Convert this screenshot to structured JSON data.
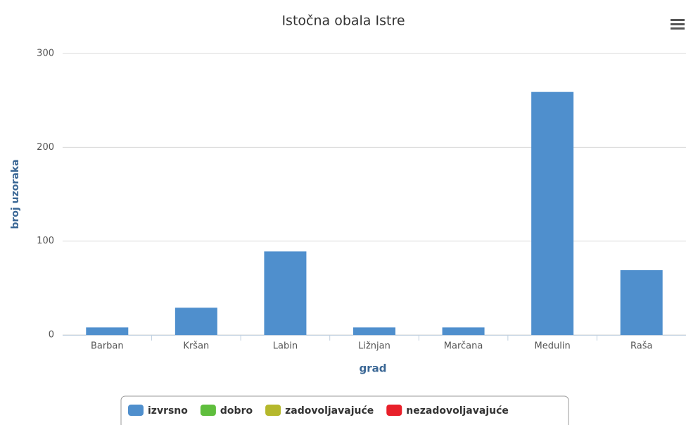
{
  "chart_data": {
    "type": "bar",
    "title": "Istočna obala Istre",
    "x_label": "grad",
    "y_label": "broj uzoraka",
    "categories": [
      "Barban",
      "Kršan",
      "Labin",
      "Ližnjan",
      "Marčana",
      "Medulin",
      "Raša"
    ],
    "series": [
      {
        "name": "izvrsno",
        "color": "#4f8fcd",
        "values": [
          8,
          29,
          89,
          8,
          8,
          259,
          69
        ]
      },
      {
        "name": "dobro",
        "color": "#5fbe3d",
        "values": [
          0,
          0,
          0,
          0,
          0,
          0,
          0
        ]
      },
      {
        "name": "zadovoljavajuće",
        "color": "#b5b82c",
        "values": [
          0,
          0,
          0,
          0,
          0,
          0,
          0
        ]
      },
      {
        "name": "nezadovoljavajuće",
        "color": "#e8202a",
        "values": [
          0,
          0,
          0,
          0,
          0,
          0,
          0
        ]
      }
    ],
    "ylim": [
      0,
      300
    ],
    "yticks": [
      0,
      100,
      200,
      300
    ],
    "grid": true
  }
}
